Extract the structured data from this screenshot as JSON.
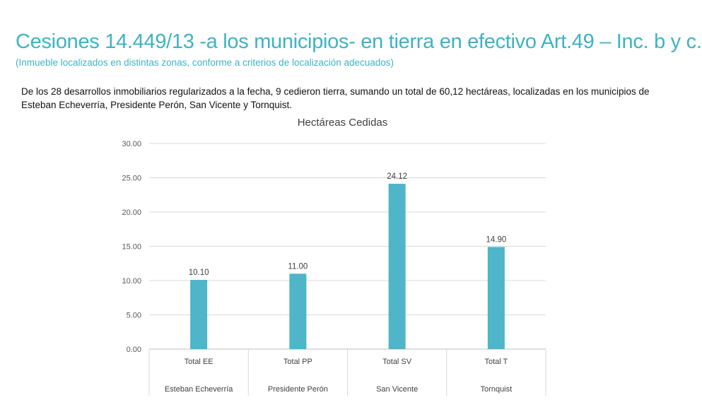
{
  "slide": {
    "title": "Cesiones 14.449/13 -a los municipios- en tierra en efectivo Art.49 – Inc. b y c.",
    "subtitle": "(Inmueble localizados en distintas zonas, conforme a criterios de localización adecuados)",
    "body": "De los 28 desarrollos inmobiliarios regularizados a la fecha, 9 cedieron tierra, sumando un total de 60,12 hectáreas,  localizadas en los municipios de Esteban Echeverría, Presidente Perón, San Vicente y Tornquist."
  },
  "chart_data": {
    "type": "bar",
    "title": "Hectáreas Cedidas",
    "categories": [
      "Total EE",
      "Total PP",
      "Total SV",
      "Total T"
    ],
    "group_labels": [
      "Esteban Echeverría",
      "Presidente Perón",
      "San Vicente",
      "Tornquist"
    ],
    "values": [
      10.1,
      11.0,
      24.12,
      14.9
    ],
    "value_labels": [
      "10.10",
      "11.00",
      "24.12",
      "14.90"
    ],
    "ylim": [
      0,
      30
    ],
    "yticks": [
      "0.00",
      "5.00",
      "10.00",
      "15.00",
      "20.00",
      "25.00",
      "30.00"
    ],
    "grid": true,
    "bar_color": "#4fb5c8",
    "xlabel": "",
    "ylabel": ""
  }
}
